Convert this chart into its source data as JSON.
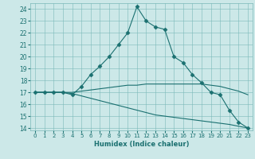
{
  "title": "",
  "xlabel": "Humidex (Indice chaleur)",
  "bg_color": "#cce8e8",
  "grid_color": "#7ab8b8",
  "line_color": "#1a7070",
  "xlim": [
    -0.5,
    23.5
  ],
  "ylim": [
    13.8,
    24.5
  ],
  "yticks": [
    14,
    15,
    16,
    17,
    18,
    19,
    20,
    21,
    22,
    23,
    24
  ],
  "xticks": [
    0,
    1,
    2,
    3,
    4,
    5,
    6,
    7,
    8,
    9,
    10,
    11,
    12,
    13,
    14,
    15,
    16,
    17,
    18,
    19,
    20,
    21,
    22,
    23
  ],
  "series": [
    {
      "x": [
        0,
        1,
        2,
        3,
        4,
        5,
        6,
        7,
        8,
        9,
        10,
        11,
        12,
        13,
        14,
        15,
        16,
        17,
        18,
        19,
        20,
        21,
        22,
        23
      ],
      "y": [
        17,
        17,
        17,
        17,
        16.8,
        17.5,
        18.5,
        19.2,
        20.0,
        21.0,
        22.0,
        24.2,
        23.0,
        22.5,
        22.3,
        20.0,
        19.5,
        18.5,
        17.8,
        17.0,
        16.8,
        15.5,
        14.5,
        14.0
      ],
      "has_markers": true,
      "marker": "D",
      "markersize": 2.5,
      "linewidth": 0.8,
      "linestyle": "-"
    },
    {
      "x": [
        0,
        1,
        2,
        3,
        4,
        5,
        6,
        7,
        8,
        9,
        10,
        11,
        12,
        13,
        14,
        15,
        16,
        17,
        18,
        19,
        20,
        21,
        22,
        23
      ],
      "y": [
        17,
        17,
        17,
        17,
        17,
        17.1,
        17.2,
        17.3,
        17.4,
        17.5,
        17.6,
        17.6,
        17.7,
        17.7,
        17.7,
        17.7,
        17.7,
        17.7,
        17.7,
        17.6,
        17.5,
        17.3,
        17.1,
        16.8
      ],
      "has_markers": false,
      "marker": null,
      "markersize": 0,
      "linewidth": 0.8,
      "linestyle": "-"
    },
    {
      "x": [
        0,
        1,
        2,
        3,
        4,
        5,
        6,
        7,
        8,
        9,
        10,
        11,
        12,
        13,
        14,
        15,
        16,
        17,
        18,
        19,
        20,
        21,
        22,
        23
      ],
      "y": [
        17,
        17,
        17,
        17,
        16.9,
        16.7,
        16.5,
        16.3,
        16.1,
        15.9,
        15.7,
        15.5,
        15.3,
        15.1,
        15.0,
        14.9,
        14.8,
        14.7,
        14.6,
        14.5,
        14.4,
        14.3,
        14.15,
        14.0
      ],
      "has_markers": false,
      "marker": null,
      "markersize": 0,
      "linewidth": 0.8,
      "linestyle": "-"
    }
  ]
}
